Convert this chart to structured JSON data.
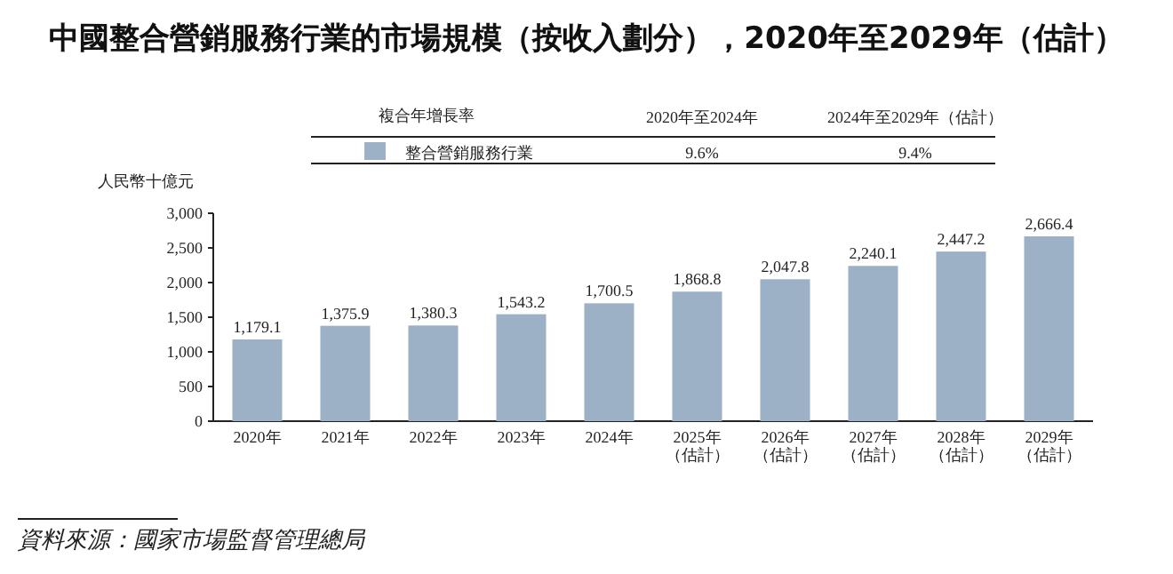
{
  "chart_data": {
    "type": "bar",
    "title": "中國整合營銷服務行業的市場規模（按收入劃分），2020年至2029年（估計）",
    "ylabel": "人民幣十億元",
    "categories": [
      "2020年",
      "2021年",
      "2022年",
      "2023年",
      "2024年",
      "2025年（估計）",
      "2026年（估計）",
      "2027年（估計）",
      "2028年（估計）",
      "2029年（估計）"
    ],
    "series": [
      {
        "name": "整合營銷服務行業",
        "color": "#9cb0c6",
        "values": [
          1179.1,
          1375.9,
          1380.3,
          1543.2,
          1700.5,
          1868.8,
          2047.8,
          2240.1,
          2447.2,
          2666.4
        ],
        "value_labels": [
          "1,179.1",
          "1,375.9",
          "1,380.3",
          "1,543.2",
          "1,700.5",
          "1,868.8",
          "2,047.8",
          "2,240.1",
          "2,447.2",
          "2,666.4"
        ]
      }
    ],
    "ylim": [
      0,
      3000
    ],
    "yticks": [
      0,
      500,
      {
        "value": 1000,
        "label": "1,000"
      },
      {
        "value": 1500,
        "label": "1,500"
      },
      {
        "value": 2000,
        "label": "2,000"
      },
      {
        "value": 2500,
        "label": "2,500"
      },
      {
        "value": 3000,
        "label": "3,000"
      }
    ],
    "legend": "top",
    "annotations": [
      "複合年增長率",
      "2020年至2024年",
      "2024年至2029年（估計）",
      "9.6%",
      "9.4%",
      "資料來源：國家市場監督管理總局"
    ]
  }
}
